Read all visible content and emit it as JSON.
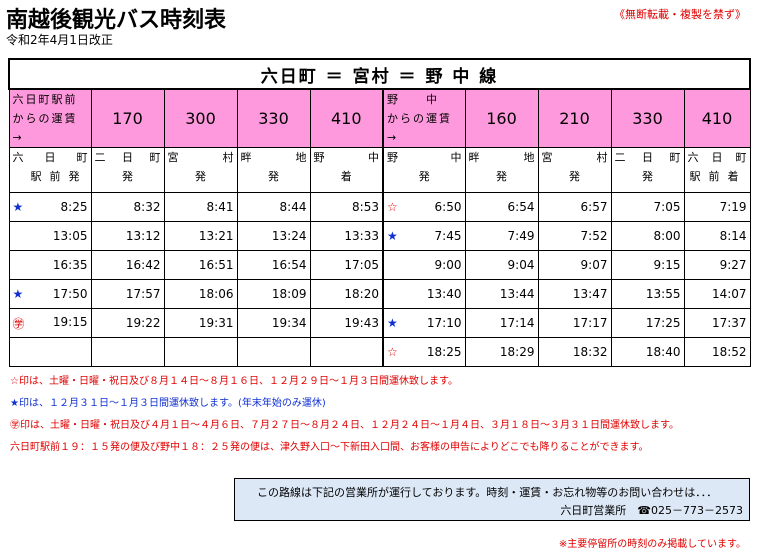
{
  "header": {
    "title": "南越後観光バス時刻表",
    "date": "令和2年4月1日改正",
    "notice": "《無断転載・複製を禁ず》"
  },
  "route": "六日町 ＝ 宮村 ＝ 野 中 線",
  "fares": {
    "left_label": [
      "六日町駅前",
      "からの運賃→"
    ],
    "left": [
      "170",
      "300",
      "330",
      "410"
    ],
    "right_label": [
      "野　　中",
      "からの運賃→"
    ],
    "right": [
      "160",
      "210",
      "330",
      "410"
    ]
  },
  "stops": [
    {
      "name": [
        "六",
        "日",
        "町"
      ],
      "action": "駅前発"
    },
    {
      "name": [
        "二",
        "日",
        "町"
      ],
      "action": "発"
    },
    {
      "name": [
        "宮",
        "村"
      ],
      "action": "発"
    },
    {
      "name": [
        "畔",
        "地"
      ],
      "action": "発"
    },
    {
      "name": [
        "野",
        "中"
      ],
      "action": "着"
    },
    {
      "name": [
        "野",
        "中"
      ],
      "action": "発"
    },
    {
      "name": [
        "畔",
        "地"
      ],
      "action": "発"
    },
    {
      "name": [
        "宮",
        "村"
      ],
      "action": "発"
    },
    {
      "name": [
        "二",
        "日",
        "町"
      ],
      "action": "発"
    },
    {
      "name": [
        "六",
        "日",
        "町"
      ],
      "action": "駅前着"
    }
  ],
  "rows": [
    {
      "mark_l": "★",
      "mark_l_color": "blue",
      "left": [
        "8:25",
        "8:32",
        "8:41",
        "8:44",
        "8:53"
      ],
      "mark_r": "☆",
      "mark_r_color": "red",
      "right": [
        "6:50",
        "6:54",
        "6:57",
        "7:05",
        "7:19"
      ]
    },
    {
      "mark_l": "",
      "mark_l_color": "",
      "left": [
        "13:05",
        "13:12",
        "13:21",
        "13:24",
        "13:33"
      ],
      "mark_r": "★",
      "mark_r_color": "blue",
      "right": [
        "7:45",
        "7:49",
        "7:52",
        "8:00",
        "8:14"
      ]
    },
    {
      "mark_l": "",
      "mark_l_color": "",
      "left": [
        "16:35",
        "16:42",
        "16:51",
        "16:54",
        "17:05"
      ],
      "mark_r": "",
      "mark_r_color": "",
      "right": [
        "9:00",
        "9:04",
        "9:07",
        "9:15",
        "9:27"
      ]
    },
    {
      "mark_l": "★",
      "mark_l_color": "blue",
      "left": [
        "17:50",
        "17:57",
        "18:06",
        "18:09",
        "18:20"
      ],
      "mark_r": "",
      "mark_r_color": "",
      "right": [
        "13:40",
        "13:44",
        "13:47",
        "13:55",
        "14:07"
      ]
    },
    {
      "mark_l": "㊫",
      "mark_l_color": "red",
      "left": [
        "19:15",
        "19:22",
        "19:31",
        "19:34",
        "19:43"
      ],
      "mark_r": "★",
      "mark_r_color": "blue",
      "right": [
        "17:10",
        "17:14",
        "17:17",
        "17:25",
        "17:37"
      ]
    },
    {
      "mark_l": "",
      "mark_l_color": "",
      "left": [
        "",
        "",
        "",
        "",
        ""
      ],
      "mark_r": "☆",
      "mark_r_color": "red",
      "right": [
        "18:25",
        "18:29",
        "18:32",
        "18:40",
        "18:52"
      ]
    }
  ],
  "notes": [
    {
      "text": "☆印は、土曜・日曜・祝日及び８月１４日～８月１６日、１２月２９日～１月３日間運休致します。",
      "color": "red"
    },
    {
      "text": "★印は、１２月３１日～１月３日間運休致します。(年末年始のみ運休)",
      "color": "blue"
    },
    {
      "text": "㊫印は、土曜・日曜・祝日及び４月１日～４月６日、７月２７日～８月２４日、１２月２４日～１月４日、３月１８日～３月３１日間運休致します。",
      "color": "red"
    },
    {
      "text": "六日町駅前１９：１５発の便及び野中１８：２５発の便は、津久野入口～下新田入口間、お客様の申告によりどこでも降りることができます。",
      "color": "red"
    }
  ],
  "info": {
    "line1": "この路線は下記の営業所が運行しております。時刻・運賃・お忘れ物等のお問い合わせは．．．",
    "line2": "六日町営業所　☎025－773－2573"
  },
  "footnote": "※主要停留所の時刻のみ掲載しています。"
}
